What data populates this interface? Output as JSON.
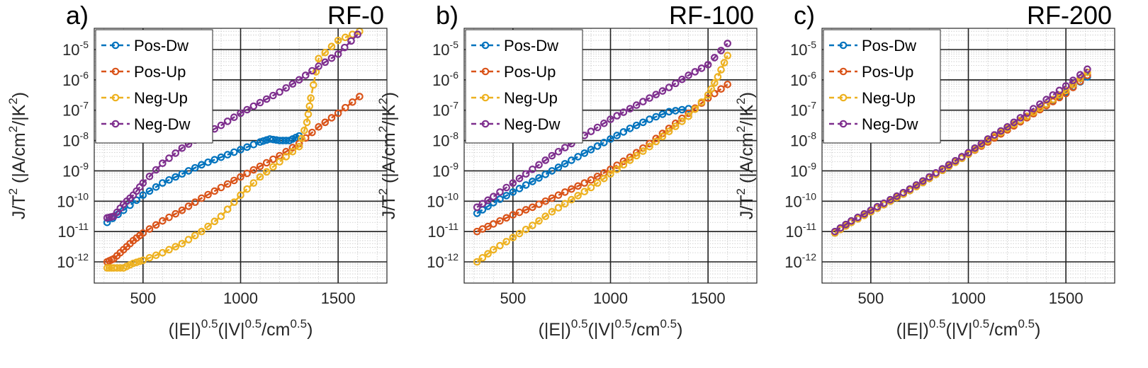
{
  "chart_data": [
    {
      "type": "scatter",
      "panel_label": "a)",
      "title": "RF-0",
      "xlabel": {
        "base": "(|E|)",
        "sup": "0.5",
        "rest": "(|V|",
        "sup2": "0.5",
        "rest2": "/cm",
        "sup3": "0.5",
        "end": ")"
      },
      "ylabel": {
        "base": "J/T",
        "sup": "2",
        "rest": " (|A/cm",
        "sup2": "2",
        "rest2": "/|K",
        "sup3": "2",
        "end": ")"
      },
      "xlim": [
        250,
        1750
      ],
      "xticks": [
        500,
        1000,
        1500
      ],
      "ylim_log10": [
        -12.7,
        -4.3
      ],
      "yticks_exp": [
        -12,
        -11,
        -10,
        -9,
        -8,
        -7,
        -6,
        -5
      ],
      "grid": "on",
      "legend_position": "top-left",
      "series": [
        {
          "name": "Pos-Dw",
          "color": "#0072BD",
          "x": [
            316,
            400,
            500,
            600,
            700,
            800,
            900,
            1000,
            1100,
            1150,
            1200,
            1250,
            1300
          ],
          "log10y": [
            -10.7,
            -10.3,
            -9.8,
            -9.4,
            -9.1,
            -8.8,
            -8.55,
            -8.3,
            -8.05,
            -7.95,
            -8.0,
            -8.0,
            -7.85
          ]
        },
        {
          "name": "Pos-Up",
          "color": "#D95319",
          "x": [
            316,
            350,
            400,
            450,
            500,
            600,
            700,
            800,
            900,
            1000,
            1100,
            1200,
            1300,
            1400,
            1500,
            1610
          ],
          "log10y": [
            -12.0,
            -11.9,
            -11.6,
            -11.3,
            -11.05,
            -10.65,
            -10.3,
            -9.9,
            -9.55,
            -9.2,
            -8.85,
            -8.5,
            -8.1,
            -7.55,
            -7.1,
            -6.55
          ]
        },
        {
          "name": "Neg-Up",
          "color": "#EDB120",
          "x": [
            316,
            350,
            400,
            450,
            500,
            600,
            700,
            800,
            900,
            1000,
            1100,
            1200,
            1300,
            1340,
            1360,
            1400,
            1500,
            1610
          ],
          "log10y": [
            -12.2,
            -12.2,
            -12.2,
            -12.05,
            -11.95,
            -11.7,
            -11.4,
            -11.0,
            -10.5,
            -9.8,
            -9.2,
            -8.7,
            -8.2,
            -7.4,
            -6.6,
            -5.3,
            -4.7,
            -4.4
          ]
        },
        {
          "name": "Neg-Dw",
          "color": "#7E2F8E",
          "x": [
            316,
            350,
            400,
            450,
            500,
            600,
            700,
            800,
            900,
            1000,
            1100,
            1200,
            1300,
            1400,
            1500,
            1600
          ],
          "log10y": [
            -10.55,
            -10.5,
            -10.1,
            -9.8,
            -9.4,
            -8.75,
            -8.25,
            -7.85,
            -7.5,
            -7.1,
            -6.75,
            -6.4,
            -6.0,
            -5.55,
            -5.15,
            -4.5
          ]
        }
      ]
    },
    {
      "type": "scatter",
      "panel_label": "b)",
      "title": "RF-100",
      "xlabel": {
        "base": "(|E|)",
        "sup": "0.5",
        "rest": "(|V|",
        "sup2": "0.5",
        "rest2": "/cm",
        "sup3": "0.5",
        "end": ")"
      },
      "ylabel": {
        "base": "J/T",
        "sup": "2",
        "rest": " (|A/cm",
        "sup2": "2",
        "rest2": "/|K",
        "sup3": "2",
        "end": ")"
      },
      "xlim": [
        250,
        1750
      ],
      "xticks": [
        500,
        1000,
        1500
      ],
      "ylim_log10": [
        -12.7,
        -4.3
      ],
      "yticks_exp": [
        -12,
        -11,
        -10,
        -9,
        -8,
        -7,
        -6,
        -5
      ],
      "grid": "on",
      "legend_position": "top-left",
      "series": [
        {
          "name": "Pos-Dw",
          "color": "#0072BD",
          "x": [
            316,
            400,
            500,
            600,
            700,
            800,
            900,
            1000,
            1100,
            1200,
            1300,
            1400
          ],
          "log10y": [
            -10.4,
            -10.05,
            -9.7,
            -9.35,
            -9.0,
            -8.65,
            -8.3,
            -7.95,
            -7.6,
            -7.3,
            -7.05,
            -6.95
          ]
        },
        {
          "name": "Pos-Up",
          "color": "#D95319",
          "x": [
            316,
            400,
            500,
            600,
            700,
            800,
            900,
            1000,
            1100,
            1200,
            1300,
            1400,
            1500,
            1600
          ],
          "log10y": [
            -11.0,
            -10.75,
            -10.45,
            -10.2,
            -9.9,
            -9.6,
            -9.3,
            -8.95,
            -8.55,
            -8.1,
            -7.6,
            -7.1,
            -6.6,
            -6.15
          ]
        },
        {
          "name": "Neg-Up",
          "color": "#EDB120",
          "x": [
            316,
            400,
            500,
            600,
            700,
            800,
            900,
            1000,
            1100,
            1200,
            1300,
            1400,
            1500,
            1550,
            1600
          ],
          "log10y": [
            -12.0,
            -11.6,
            -11.2,
            -10.8,
            -10.35,
            -9.95,
            -9.55,
            -9.1,
            -8.65,
            -8.2,
            -7.7,
            -7.2,
            -6.5,
            -5.9,
            -5.2
          ]
        },
        {
          "name": "Neg-Dw",
          "color": "#7E2F8E",
          "x": [
            316,
            400,
            500,
            600,
            700,
            800,
            900,
            1000,
            1100,
            1200,
            1300,
            1400,
            1500,
            1600
          ],
          "log10y": [
            -10.2,
            -9.85,
            -9.4,
            -8.95,
            -8.5,
            -8.1,
            -7.7,
            -7.3,
            -6.95,
            -6.6,
            -6.25,
            -5.85,
            -5.5,
            -4.8
          ]
        }
      ]
    },
    {
      "type": "scatter",
      "panel_label": "c)",
      "title": "RF-200",
      "xlabel": {
        "base": "(|E|)",
        "sup": "0.5",
        "rest": "(|V|",
        "sup2": "0.5",
        "rest2": "/cm",
        "sup3": "0.5",
        "end": ")"
      },
      "ylabel": {
        "base": "J/T",
        "sup": "2",
        "rest": " (|A/cm",
        "sup2": "2",
        "rest2": "/|K",
        "sup3": "2",
        "end": ")"
      },
      "xlim": [
        250,
        1750
      ],
      "xticks": [
        500,
        1000,
        1500
      ],
      "ylim_log10": [
        -12.7,
        -4.3
      ],
      "yticks_exp": [
        -12,
        -11,
        -10,
        -9,
        -8,
        -7,
        -6,
        -5
      ],
      "grid": "on",
      "legend_position": "top-left",
      "series": [
        {
          "name": "Pos-Dw",
          "color": "#0072BD",
          "x": [
            316,
            400,
            500,
            600,
            700,
            800,
            900,
            1000,
            1100,
            1200,
            1300,
            1400,
            1500,
            1610
          ],
          "log10y": [
            -11.05,
            -10.7,
            -10.35,
            -10.0,
            -9.65,
            -9.25,
            -8.85,
            -8.45,
            -8.0,
            -7.6,
            -7.2,
            -6.8,
            -6.4,
            -5.9
          ]
        },
        {
          "name": "Pos-Up",
          "color": "#D95319",
          "x": [
            316,
            400,
            500,
            600,
            700,
            800,
            900,
            1000,
            1100,
            1200,
            1300,
            1400,
            1500,
            1610
          ],
          "log10y": [
            -11.05,
            -10.7,
            -10.35,
            -10.0,
            -9.65,
            -9.25,
            -8.85,
            -8.45,
            -8.05,
            -7.65,
            -7.25,
            -6.85,
            -6.45,
            -5.85
          ]
        },
        {
          "name": "Neg-Up",
          "color": "#EDB120",
          "x": [
            316,
            400,
            500,
            600,
            700,
            800,
            900,
            1000,
            1100,
            1200,
            1300,
            1400,
            1500,
            1610
          ],
          "log10y": [
            -11.05,
            -10.7,
            -10.35,
            -10.0,
            -9.65,
            -9.25,
            -8.85,
            -8.45,
            -8.0,
            -7.6,
            -7.2,
            -6.8,
            -6.35,
            -5.75
          ]
        },
        {
          "name": "Neg-Dw",
          "color": "#7E2F8E",
          "x": [
            316,
            400,
            500,
            600,
            700,
            800,
            900,
            1000,
            1100,
            1200,
            1300,
            1400,
            1500,
            1610
          ],
          "log10y": [
            -11.0,
            -10.65,
            -10.3,
            -9.95,
            -9.6,
            -9.2,
            -8.8,
            -8.4,
            -7.95,
            -7.55,
            -7.1,
            -6.65,
            -6.2,
            -5.65
          ]
        }
      ]
    }
  ]
}
